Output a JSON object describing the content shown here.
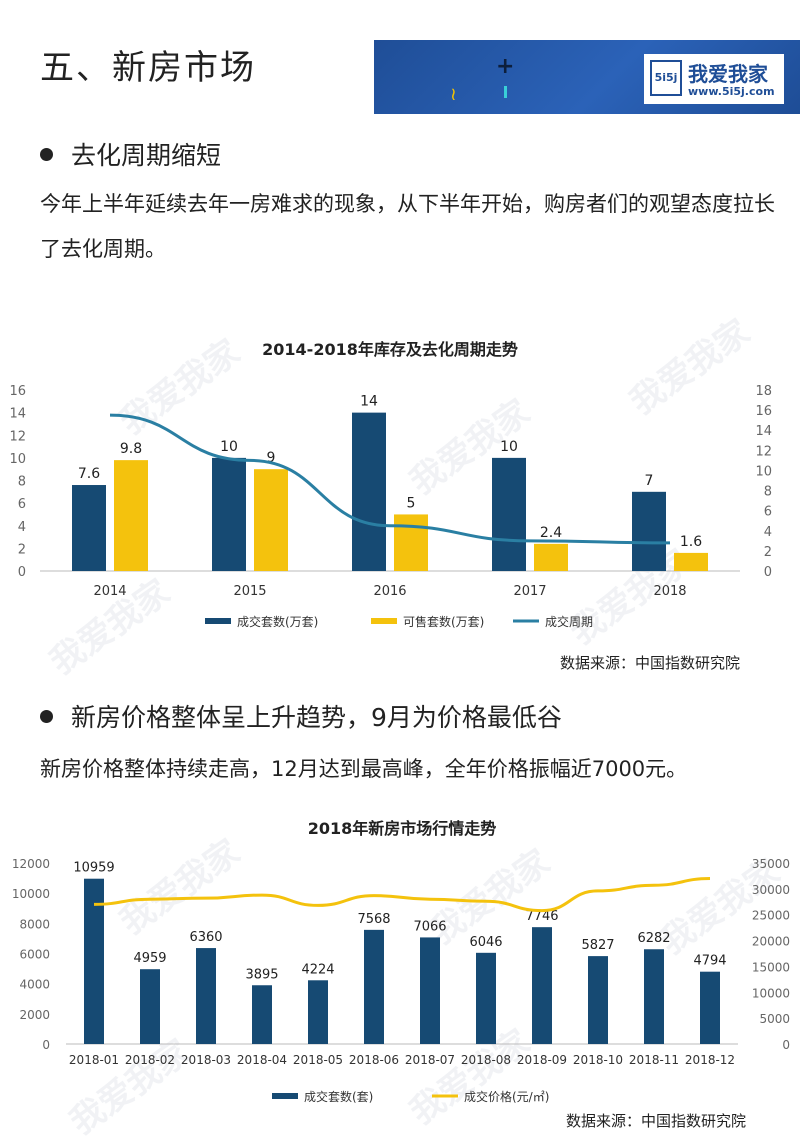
{
  "header": {
    "title": "五、新房市场",
    "brand_name": "我爱我家",
    "brand_url": "www.5i5j.com",
    "brand_mark": "5i5j"
  },
  "section1": {
    "heading": "去化周期缩短",
    "paragraph": "今年上半年延续去年一房难求的现象，从下半年开始，购房者们的观望态度拉长了去化周期。",
    "source": "数据来源：中国指数研究院"
  },
  "section2": {
    "heading": "新房价格整体呈上升趋势，9月为价格最低谷",
    "paragraph": "新房价格整体持续走高，12月达到最高峰，全年价格振幅近7000元。",
    "source": "数据来源：中国指数研究院"
  },
  "watermark": "我爱我家",
  "colors": {
    "navy": "#164a73",
    "yellow": "#f4c20d",
    "teal": "#2a7fa3",
    "axis": "#666666"
  },
  "chart_data": [
    {
      "type": "bar",
      "title": "2014-2018年库存及去化周期走势",
      "categories": [
        "2014",
        "2015",
        "2016",
        "2017",
        "2018"
      ],
      "series": [
        {
          "name": "成交套数(万套)",
          "type": "bar",
          "axis": "left",
          "values": [
            7.6,
            10,
            14,
            10,
            7
          ],
          "labels": [
            "7.6",
            "10",
            "14",
            "10",
            "7"
          ]
        },
        {
          "name": "可售套数(万套)",
          "type": "bar",
          "axis": "left",
          "values": [
            9.8,
            9,
            5,
            2.4,
            1.6
          ],
          "labels": [
            "9.8",
            "9",
            "5",
            "2.4",
            "1.6"
          ]
        },
        {
          "name": "成交周期",
          "type": "line",
          "axis": "right",
          "values": [
            15.5,
            11,
            4.5,
            3,
            2.8
          ]
        }
      ],
      "y_left": {
        "min": 0,
        "max": 16,
        "ticks": [
          "0",
          "2",
          "4",
          "6",
          "8",
          "10",
          "12",
          "14",
          "16"
        ]
      },
      "y_right": {
        "min": 0,
        "max": 18,
        "ticks": [
          "0",
          "2",
          "4",
          "6",
          "8",
          "10",
          "12",
          "14",
          "16",
          "18"
        ]
      },
      "grid": false,
      "legend": "bottom"
    },
    {
      "type": "bar",
      "title": "2018年新房市场行情走势",
      "categories": [
        "2018-01",
        "2018-02",
        "2018-03",
        "2018-04",
        "2018-05",
        "2018-06",
        "2018-07",
        "2018-08",
        "2018-09",
        "2018-10",
        "2018-11",
        "2018-12"
      ],
      "series": [
        {
          "name": "成交套数(套)",
          "type": "bar",
          "axis": "left",
          "values": [
            10959,
            4959,
            6360,
            3895,
            4224,
            7568,
            7066,
            6046,
            7746,
            5827,
            6282,
            4794
          ],
          "labels": [
            "10959",
            "4959",
            "6360",
            "3895",
            "4224",
            "7568",
            "7066",
            "6046",
            "7746",
            "5827",
            "6282",
            "4794"
          ]
        },
        {
          "name": "成交价格(元/㎡)",
          "type": "line",
          "axis": "right",
          "values": [
            27000,
            28000,
            28200,
            28800,
            26800,
            28700,
            28000,
            27600,
            25800,
            29600,
            30700,
            32000
          ]
        }
      ],
      "y_left": {
        "min": 0,
        "max": 12000,
        "ticks": [
          "0",
          "2000",
          "4000",
          "6000",
          "8000",
          "10000",
          "12000"
        ]
      },
      "y_right": {
        "min": 0,
        "max": 35000,
        "ticks": [
          "0",
          "5000",
          "10000",
          "15000",
          "20000",
          "25000",
          "30000",
          "35000"
        ]
      },
      "grid": false,
      "legend": "bottom"
    }
  ]
}
